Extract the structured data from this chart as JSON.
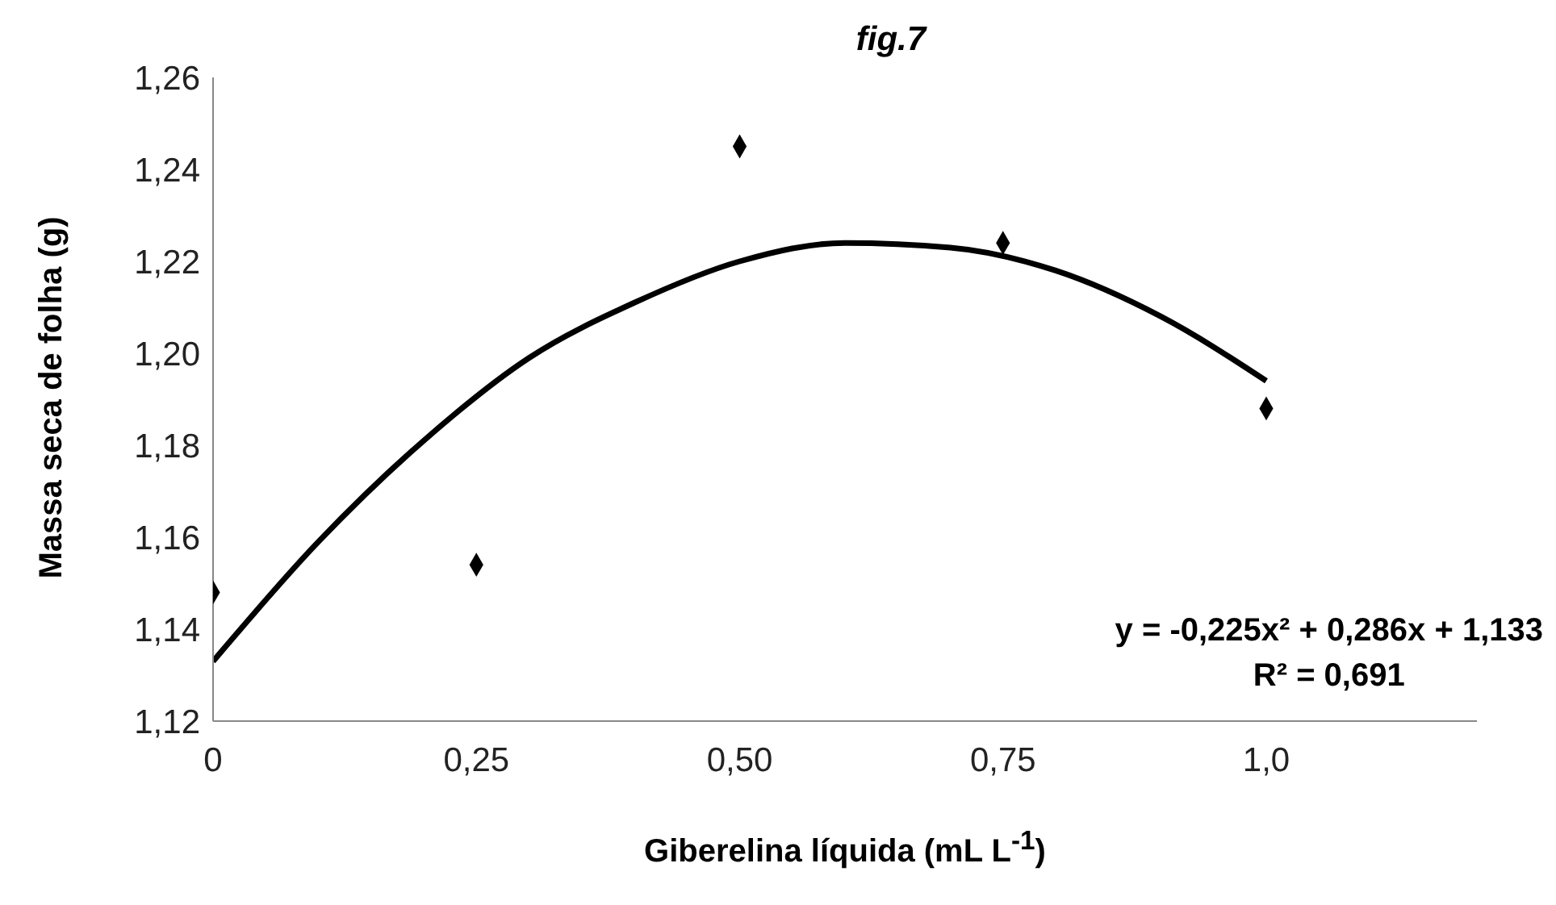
{
  "chart_data": {
    "type": "scatter",
    "title": "fig.7",
    "xlabel": "Giberelina líquida (mL L$^{-1}$)",
    "ylabel": "Massa seca de folha (g)",
    "annotations": [
      "y = -0,225x² + 0,286x + 1,133",
      "R² = 0,691"
    ],
    "xlim": [
      0,
      1.2
    ],
    "xticks": [
      {
        "value": 0,
        "label": "0"
      },
      {
        "value": 0.25,
        "label": "0,25"
      },
      {
        "value": 0.5,
        "label": "0,50"
      },
      {
        "value": 0.75,
        "label": "0,75"
      },
      {
        "value": 1,
        "label": "1,0"
      }
    ],
    "ylim": [
      1.12,
      1.26
    ],
    "yticks": [
      {
        "value": 1.12,
        "label": "1,12"
      },
      {
        "value": 1.14,
        "label": "1,14"
      },
      {
        "value": 1.16,
        "label": "1,16"
      },
      {
        "value": 1.18,
        "label": "1,18"
      },
      {
        "value": 1.2,
        "label": "1,20"
      },
      {
        "value": 1.22,
        "label": "1,22"
      },
      {
        "value": 1.24,
        "label": "1,24"
      },
      {
        "value": 1.26,
        "label": "1,26"
      }
    ],
    "grid": false,
    "marker": "diamond",
    "series": [
      {
        "color": "#000000",
        "x": [
          0,
          0.25,
          0.5,
          0.75,
          1
        ],
        "values": [
          1.148,
          1.154,
          1.245,
          1.224,
          1.188
        ]
      },
      {
        "type": "line",
        "color": "#000000",
        "marker": "none",
        "line_style": "solid",
        "x": [
          0,
          0.1,
          0.2,
          0.3,
          0.4,
          0.5,
          0.6,
          0.7,
          0.8,
          0.9,
          1
        ],
        "values": [
          1.133,
          1.159,
          1.181,
          1.199,
          1.211,
          1.22,
          1.224,
          1.223,
          1.218,
          1.208,
          1.194
        ]
      }
    ]
  }
}
